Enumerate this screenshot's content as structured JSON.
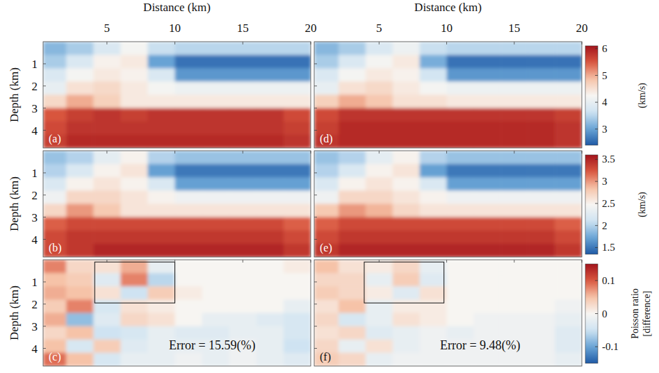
{
  "chart_data": [
    {
      "type": "heatmap",
      "label": "(a)",
      "xlabel": "Distance (km)",
      "ylabel": "Depth (km)",
      "xlim": [
        0.3,
        20
      ],
      "ylim": [
        0,
        4.8
      ],
      "xticks": [
        5,
        10,
        15,
        20
      ],
      "yticks": [
        1,
        2,
        3,
        4
      ],
      "tick_labels": true,
      "x_edges": [
        0.3,
        2,
        4,
        6,
        8,
        10,
        12,
        14,
        16,
        18,
        20
      ],
      "y_edges": [
        0,
        0.6,
        1.2,
        1.8,
        2.4,
        3.0,
        3.6,
        4.2,
        4.8
      ],
      "color_range": [
        2.4,
        6.1
      ],
      "values": [
        [
          3.2,
          3.4,
          3.8,
          4.2,
          3.6,
          3.5,
          3.5,
          3.5,
          3.5,
          3.5
        ],
        [
          3.4,
          3.8,
          4.3,
          4.4,
          3.0,
          2.6,
          2.6,
          2.6,
          2.6,
          2.6
        ],
        [
          3.8,
          4.2,
          4.4,
          4.3,
          3.8,
          2.9,
          2.9,
          2.9,
          2.9,
          2.9
        ],
        [
          4.0,
          4.5,
          4.6,
          4.4,
          4.2,
          4.1,
          4.1,
          4.1,
          4.1,
          4.1
        ],
        [
          4.6,
          5.0,
          4.7,
          4.4,
          4.4,
          4.4,
          4.4,
          4.4,
          4.4,
          4.4
        ],
        [
          5.5,
          5.7,
          5.8,
          5.7,
          5.8,
          5.8,
          5.8,
          5.8,
          5.8,
          5.6
        ],
        [
          5.6,
          5.8,
          5.8,
          5.8,
          5.8,
          5.8,
          5.8,
          5.8,
          5.8,
          5.7
        ],
        [
          5.7,
          5.9,
          5.9,
          5.9,
          5.9,
          5.9,
          5.9,
          5.9,
          5.9,
          5.8
        ]
      ]
    },
    {
      "type": "heatmap",
      "label": "(b)",
      "ylabel": "Depth (km)",
      "xlim": [
        0.3,
        20
      ],
      "ylim": [
        0,
        4.8
      ],
      "xticks": [
        5,
        10,
        15,
        20
      ],
      "yticks": [
        1,
        2,
        3,
        4
      ],
      "tick_labels": "y",
      "x_edges": [
        0.3,
        2,
        4,
        6,
        8,
        10,
        12,
        14,
        16,
        18,
        20
      ],
      "y_edges": [
        0,
        0.6,
        1.2,
        1.8,
        2.4,
        3.0,
        3.6,
        4.2,
        4.8
      ],
      "color_range": [
        1.35,
        3.6
      ],
      "values": [
        [
          1.9,
          2.0,
          2.3,
          2.5,
          2.0,
          1.9,
          1.9,
          1.9,
          1.9,
          1.9
        ],
        [
          2.0,
          2.2,
          2.5,
          2.6,
          1.7,
          1.5,
          1.5,
          1.5,
          1.5,
          1.5
        ],
        [
          2.2,
          2.5,
          2.6,
          2.5,
          2.2,
          1.7,
          1.7,
          1.7,
          1.7,
          1.7
        ],
        [
          2.4,
          2.7,
          2.7,
          2.6,
          2.5,
          2.4,
          2.4,
          2.4,
          2.4,
          2.4
        ],
        [
          2.7,
          3.0,
          2.8,
          2.6,
          2.6,
          2.6,
          2.6,
          2.6,
          2.6,
          2.6
        ],
        [
          3.2,
          3.3,
          3.3,
          3.3,
          3.3,
          3.3,
          3.3,
          3.3,
          3.3,
          3.2
        ],
        [
          3.3,
          3.4,
          3.4,
          3.4,
          3.4,
          3.4,
          3.4,
          3.4,
          3.4,
          3.3
        ],
        [
          3.3,
          3.4,
          3.5,
          3.5,
          3.5,
          3.5,
          3.5,
          3.5,
          3.5,
          3.4
        ]
      ]
    },
    {
      "type": "heatmap",
      "label": "(c)",
      "ylabel": "Depth (km)",
      "xlim": [
        0.3,
        20
      ],
      "ylim": [
        0,
        4.8
      ],
      "xticks": [
        5,
        10,
        15,
        20
      ],
      "yticks": [
        1,
        2,
        3,
        4
      ],
      "tick_labels": "y",
      "x_edges": [
        0.3,
        2,
        4,
        6,
        8,
        10,
        12,
        14,
        16,
        18,
        20
      ],
      "y_edges": [
        0,
        0.6,
        1.2,
        1.8,
        2.4,
        3.0,
        3.6,
        4.2,
        4.8
      ],
      "color_range": [
        -0.15,
        0.15
      ],
      "annotation": "Error = 15.59(%)",
      "box": {
        "x": [
          4.1,
          10
        ],
        "y": [
          0.1,
          1.95
        ]
      },
      "values": [
        [
          0.08,
          0.03,
          0.02,
          0.06,
          -0.02,
          0.0,
          0.0,
          0.0,
          0.0,
          0.01
        ],
        [
          0.05,
          0.04,
          -0.03,
          0.08,
          -0.06,
          0.0,
          0.0,
          0.0,
          0.0,
          0.0
        ],
        [
          0.06,
          0.05,
          0.02,
          -0.05,
          0.04,
          0.01,
          0.0,
          0.0,
          0.0,
          0.0
        ],
        [
          0.04,
          0.08,
          -0.04,
          0.02,
          0.01,
          0.0,
          0.0,
          0.0,
          0.0,
          -0.02
        ],
        [
          0.06,
          -0.08,
          -0.03,
          0.03,
          0.02,
          0.0,
          -0.02,
          -0.02,
          -0.03,
          -0.04
        ],
        [
          0.03,
          0.05,
          -0.05,
          -0.04,
          -0.02,
          -0.03,
          -0.03,
          -0.02,
          -0.02,
          -0.04
        ],
        [
          0.05,
          -0.04,
          0.04,
          -0.03,
          -0.02,
          -0.02,
          -0.02,
          -0.01,
          -0.02,
          -0.05
        ],
        [
          0.09,
          0.05,
          -0.04,
          -0.02,
          -0.02,
          -0.01,
          -0.02,
          -0.01,
          -0.02,
          -0.03
        ]
      ]
    },
    {
      "type": "heatmap",
      "label": "(d)",
      "xlabel": "Distance (km)",
      "xlim": [
        0.2,
        20
      ],
      "ylim": [
        0,
        4.8
      ],
      "xticks": [
        5,
        10,
        15,
        20
      ],
      "yticks": [
        1,
        2,
        3,
        4
      ],
      "tick_labels": "x",
      "x_edges": [
        0.2,
        2,
        4,
        6,
        8,
        10,
        12,
        14,
        16,
        18,
        20
      ],
      "y_edges": [
        0,
        0.6,
        1.2,
        1.8,
        2.4,
        3.0,
        3.6,
        4.2,
        4.8
      ],
      "color_range": [
        2.4,
        6.1
      ],
      "colorbar": {
        "ticks": [
          3,
          4,
          5,
          6
        ],
        "label": "(km/s)"
      },
      "values": [
        [
          3.2,
          3.4,
          3.8,
          4.1,
          3.6,
          3.5,
          3.5,
          3.5,
          3.5,
          3.5
        ],
        [
          3.4,
          3.8,
          4.2,
          4.4,
          3.1,
          2.6,
          2.6,
          2.6,
          2.6,
          2.6
        ],
        [
          3.8,
          4.2,
          4.4,
          4.3,
          3.7,
          2.9,
          2.9,
          2.9,
          2.9,
          2.9
        ],
        [
          4.0,
          4.5,
          4.6,
          4.4,
          4.2,
          4.1,
          4.1,
          4.1,
          4.1,
          4.1
        ],
        [
          4.7,
          5.0,
          4.8,
          4.5,
          4.5,
          4.4,
          4.4,
          4.4,
          4.4,
          4.4
        ],
        [
          5.6,
          5.8,
          5.8,
          5.8,
          5.8,
          5.8,
          5.8,
          5.8,
          5.8,
          5.7
        ],
        [
          5.7,
          5.9,
          5.9,
          5.9,
          5.9,
          5.9,
          5.9,
          5.9,
          5.9,
          5.8
        ],
        [
          5.8,
          5.9,
          5.9,
          5.9,
          5.9,
          5.9,
          5.9,
          5.9,
          5.9,
          5.8
        ]
      ]
    },
    {
      "type": "heatmap",
      "label": "(e)",
      "xlim": [
        0.2,
        20
      ],
      "ylim": [
        0,
        4.8
      ],
      "xticks": [
        5,
        10,
        15,
        20
      ],
      "yticks": [
        1,
        2,
        3,
        4
      ],
      "tick_labels": false,
      "x_edges": [
        0.2,
        2,
        4,
        6,
        8,
        10,
        12,
        14,
        16,
        18,
        20
      ],
      "y_edges": [
        0,
        0.6,
        1.2,
        1.8,
        2.4,
        3.0,
        3.6,
        4.2,
        4.8
      ],
      "color_range": [
        1.35,
        3.6
      ],
      "colorbar": {
        "ticks": [
          1.5,
          2,
          2.5,
          3,
          3.5
        ],
        "label": "(km/s)"
      },
      "values": [
        [
          1.9,
          2.0,
          2.3,
          2.5,
          2.0,
          1.9,
          1.9,
          1.9,
          1.9,
          1.9
        ],
        [
          2.0,
          2.2,
          2.5,
          2.6,
          1.7,
          1.5,
          1.5,
          1.5,
          1.5,
          1.5
        ],
        [
          2.2,
          2.5,
          2.6,
          2.5,
          2.2,
          1.7,
          1.7,
          1.7,
          1.7,
          1.7
        ],
        [
          2.4,
          2.7,
          2.7,
          2.6,
          2.5,
          2.4,
          2.4,
          2.4,
          2.4,
          2.4
        ],
        [
          2.8,
          3.0,
          2.9,
          2.7,
          2.6,
          2.6,
          2.6,
          2.6,
          2.6,
          2.6
        ],
        [
          3.2,
          3.3,
          3.3,
          3.3,
          3.3,
          3.3,
          3.3,
          3.3,
          3.3,
          3.2
        ],
        [
          3.3,
          3.4,
          3.4,
          3.4,
          3.4,
          3.4,
          3.4,
          3.4,
          3.4,
          3.3
        ],
        [
          3.4,
          3.5,
          3.5,
          3.5,
          3.5,
          3.5,
          3.5,
          3.5,
          3.5,
          3.4
        ]
      ]
    },
    {
      "type": "heatmap",
      "label": "(f)",
      "xlim": [
        0.2,
        20
      ],
      "ylim": [
        0,
        4.8
      ],
      "xticks": [
        5,
        10,
        15,
        20
      ],
      "yticks": [
        1,
        2,
        3,
        4
      ],
      "tick_labels": false,
      "x_edges": [
        0.2,
        2,
        4,
        6,
        8,
        10,
        12,
        14,
        16,
        18,
        20
      ],
      "y_edges": [
        0,
        0.6,
        1.2,
        1.8,
        2.4,
        3.0,
        3.6,
        4.2,
        4.8
      ],
      "color_range": [
        -0.15,
        0.15
      ],
      "colorbar": {
        "ticks": [
          -0.1,
          0,
          0.1
        ],
        "label": "Poisson ratio [difference]"
      },
      "annotation": "Error = 9.48(%)",
      "box": {
        "x": [
          3.9,
          9.8
        ],
        "y": [
          0.1,
          1.95
        ]
      },
      "values": [
        [
          0.05,
          0.02,
          0.01,
          0.03,
          -0.02,
          0.0,
          0.0,
          0.0,
          0.0,
          0.0
        ],
        [
          0.03,
          0.03,
          -0.02,
          0.04,
          -0.03,
          0.0,
          0.0,
          0.0,
          0.0,
          0.0
        ],
        [
          0.04,
          0.03,
          0.01,
          -0.03,
          0.02,
          0.0,
          0.0,
          0.0,
          0.0,
          0.0
        ],
        [
          0.02,
          0.05,
          -0.02,
          0.01,
          0.01,
          0.0,
          0.0,
          0.0,
          0.0,
          -0.01
        ],
        [
          0.03,
          -0.04,
          -0.02,
          0.02,
          0.01,
          0.0,
          -0.01,
          -0.01,
          -0.01,
          -0.02
        ],
        [
          0.02,
          0.03,
          -0.03,
          -0.02,
          -0.01,
          -0.02,
          -0.01,
          -0.01,
          -0.01,
          -0.03
        ],
        [
          0.03,
          -0.02,
          0.02,
          -0.02,
          -0.01,
          -0.01,
          -0.01,
          -0.01,
          -0.01,
          -0.03
        ],
        [
          0.04,
          0.03,
          -0.02,
          -0.01,
          -0.01,
          -0.01,
          -0.01,
          -0.01,
          -0.01,
          -0.02
        ]
      ]
    }
  ]
}
